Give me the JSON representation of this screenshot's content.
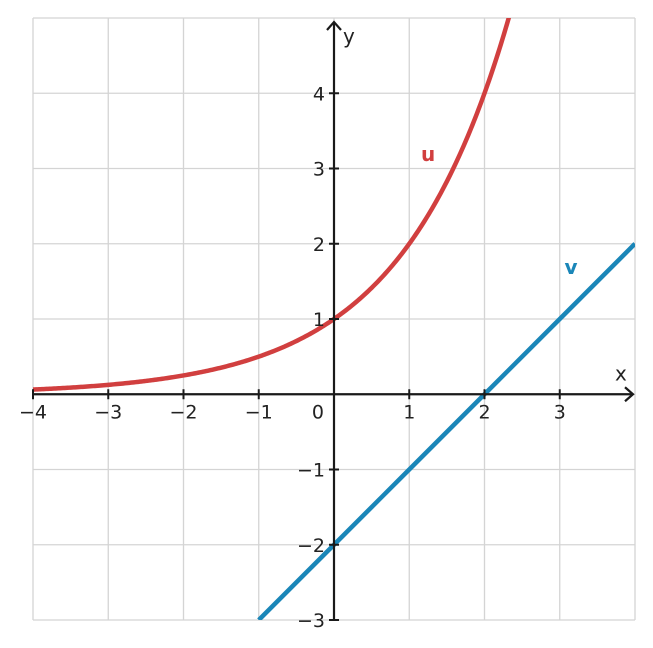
{
  "chart_data": {
    "type": "line",
    "title": "",
    "xlabel": "x",
    "ylabel": "y",
    "xlim": [
      -4,
      4
    ],
    "ylim": [
      -3,
      5
    ],
    "grid": true,
    "origin_label": "0",
    "x_ticks": [
      -4,
      -3,
      -2,
      -1,
      1,
      2,
      3
    ],
    "x_tick_labels": [
      "−4",
      "−3",
      "−2",
      "−1",
      "1",
      "2",
      "3"
    ],
    "y_ticks": [
      -3,
      -2,
      -1,
      1,
      2,
      3,
      4
    ],
    "y_tick_labels": [
      "−3",
      "−2",
      "−1",
      "1",
      "2",
      "3",
      "4"
    ],
    "series": [
      {
        "name": "u",
        "color": "#d13f3f",
        "points": [
          [
            -4,
            0.0625
          ],
          [
            -3,
            0.125
          ],
          [
            -2,
            0.25
          ],
          [
            -1,
            0.5
          ],
          [
            0,
            1
          ],
          [
            1,
            2
          ],
          [
            2,
            4
          ],
          [
            2.3,
            4.92
          ]
        ]
      },
      {
        "name": "v",
        "color": "#1a86b8",
        "points": [
          [
            -1,
            -3
          ],
          [
            0,
            -2
          ],
          [
            1,
            -1
          ],
          [
            2,
            0
          ],
          [
            3,
            1
          ],
          [
            4,
            2
          ]
        ]
      }
    ]
  }
}
